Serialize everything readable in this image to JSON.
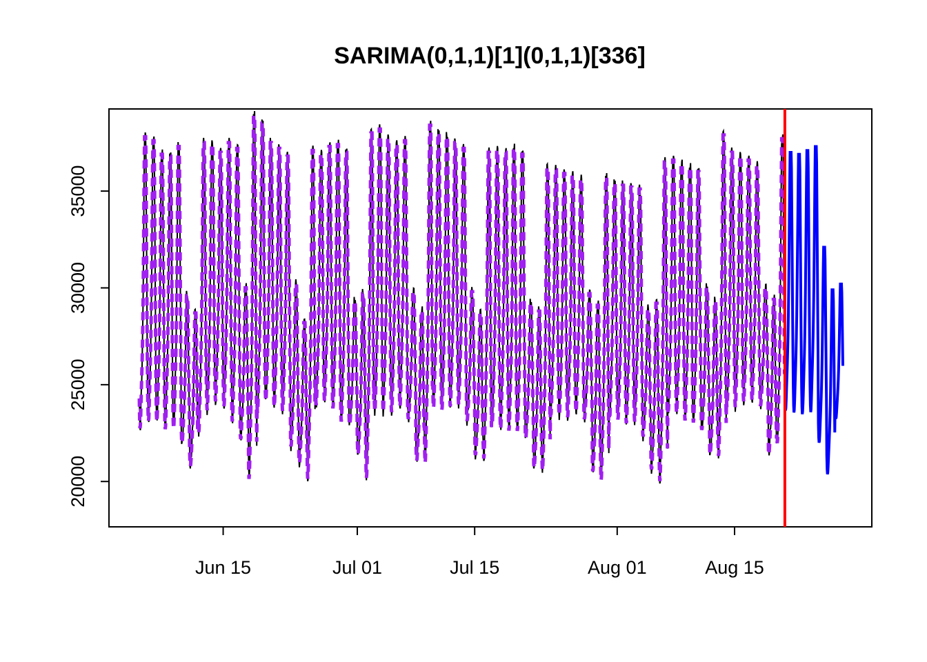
{
  "chart_data": {
    "type": "line",
    "title": "SARIMA(0,1,1)[1](0,1,1)[336]",
    "xlabel": "",
    "ylabel": "",
    "x_ticks": [
      "Jun 15",
      "Jul 01",
      "Jul 15",
      "Aug 01",
      "Aug 15"
    ],
    "y_ticks": [
      20000,
      25000,
      30000,
      35000
    ],
    "x_range": [
      "2024-06-05",
      "2024-08-28"
    ],
    "ylim": [
      17800,
      39100
    ],
    "grid": false,
    "legend": "none",
    "forecast_start": "2024-08-21",
    "daily_profile": {
      "day_min": [
        22000,
        22400,
        22400,
        22000,
        22000,
        21600,
        20400,
        21800,
        23000,
        23500,
        23200,
        22400,
        21800,
        19200,
        22800,
        23500,
        23200,
        23000,
        21400,
        20600,
        19300,
        23300,
        23500,
        23100,
        22400,
        22600,
        21000,
        19300,
        22900,
        22900,
        22900,
        23200,
        22900,
        20700,
        20100,
        23100,
        23000,
        23200,
        23300,
        22800,
        21000,
        20400,
        22300,
        22000,
        21900,
        21900,
        21900,
        20300,
        19800,
        22800,
        22800,
        22700,
        23000,
        22900,
        20100,
        19300,
        22600,
        22600,
        22400,
        22500,
        22000,
        20200,
        19200,
        23000,
        22900,
        22500,
        22400,
        22300,
        21000,
        20500,
        23200,
        23200,
        23500,
        23600,
        23600,
        21000,
        21200,
        23000,
        22900,
        22800,
        22900,
        21500,
        19900,
        22900
      ],
      "day_max": [
        37800,
        37600,
        36900,
        36800,
        37300,
        29600,
        28700,
        37500,
        37400,
        37000,
        37500,
        37200,
        30000,
        38900,
        38500,
        37500,
        37200,
        36800,
        30200,
        28200,
        37100,
        36900,
        37300,
        37400,
        37000,
        29300,
        29700,
        38000,
        38200,
        37700,
        37400,
        37600,
        29800,
        28800,
        38400,
        38000,
        37800,
        37500,
        37200,
        29800,
        28700,
        37000,
        37100,
        37000,
        37200,
        36900,
        29200,
        28800,
        36200,
        36100,
        35900,
        35800,
        35600,
        29700,
        29100,
        35700,
        35400,
        35300,
        35200,
        35100,
        28900,
        29200,
        36500,
        36600,
        36400,
        36200,
        36000,
        30000,
        29300,
        37900,
        37000,
        36800,
        36600,
        36300,
        30000,
        29400,
        37700,
        37000,
        36900,
        37100,
        37300,
        32100,
        29900,
        30200
      ]
    },
    "series": [
      {
        "name": "",
        "role": "observed",
        "color": "#000000",
        "x_start": "2024-06-05",
        "x_end": "2024-08-21"
      },
      {
        "name": "",
        "role": "fitted",
        "color": "#A020F0",
        "x_start": "2024-06-05",
        "x_end": "2024-08-21"
      },
      {
        "name": "",
        "role": "forecast",
        "color": "#0000FF",
        "x_start": "2024-08-21",
        "x_end": "2024-08-28"
      }
    ]
  },
  "colors": {
    "observed": "#000000",
    "fitted": "#A020F0",
    "forecast": "#0000FF",
    "forecast_marker": "#FF0000",
    "frame": "#000000"
  }
}
